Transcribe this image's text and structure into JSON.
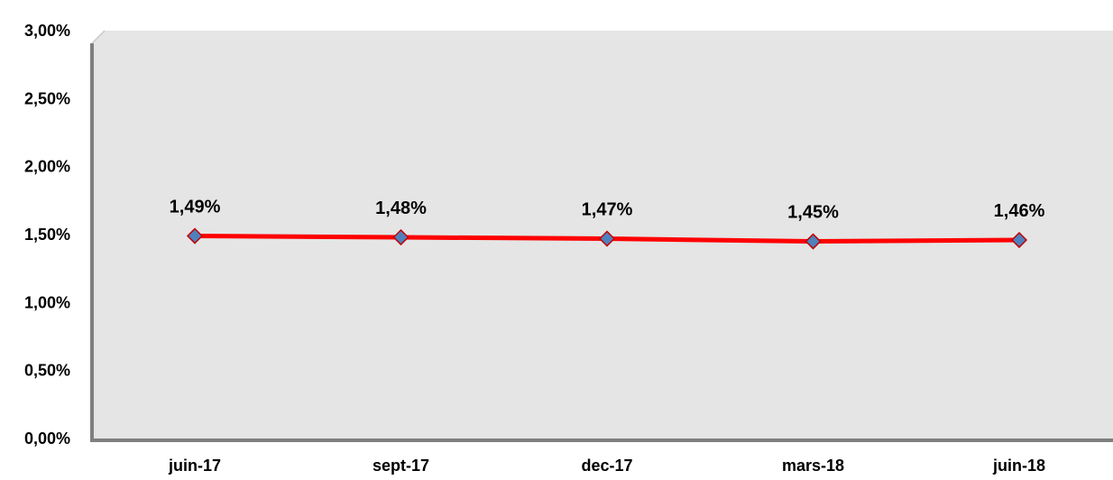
{
  "chart_data": {
    "type": "line",
    "title": "",
    "xlabel": "",
    "ylabel": "",
    "categories": [
      "juin-17",
      "sept-17",
      "dec-17",
      "mars-18",
      "juin-18"
    ],
    "series": [
      {
        "values": [
          1.49,
          1.48,
          1.47,
          1.45,
          1.46
        ],
        "labels": [
          "1,49%",
          "1,48%",
          "1,47%",
          "1,45%",
          "1,46%"
        ]
      }
    ],
    "ylim": [
      0,
      3.0
    ],
    "y_ticks": [
      0,
      0.5,
      1.0,
      1.5,
      2.0,
      2.5,
      3.0
    ],
    "y_tick_labels": [
      "0,00%",
      "0,50%",
      "1,00%",
      "1,50%",
      "2,00%",
      "2,50%",
      "3,00%"
    ],
    "grid": false,
    "legend": "none",
    "colors": {
      "plot_background": "#e5e5e5",
      "plot_shadow": "#7f7f7f",
      "line": "#ff0000",
      "marker_fill": "#4f81bd",
      "marker_stroke": "#c00000"
    }
  }
}
